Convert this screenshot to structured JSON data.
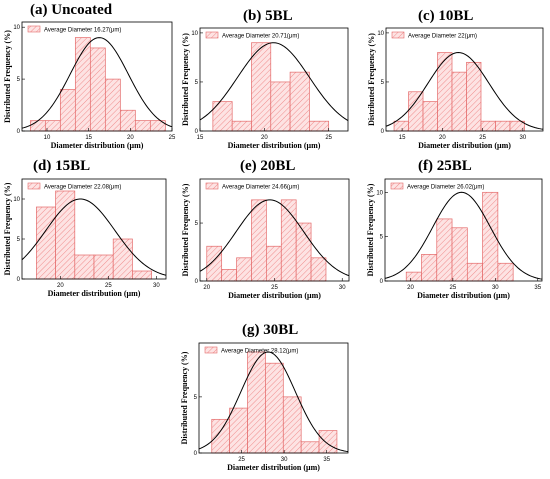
{
  "colors": {
    "bar_fill": "#fde3e3",
    "bar_stroke": "#e46a6a",
    "hatch": "#f08c8c",
    "curve": "#000000",
    "axis": "#000000"
  },
  "chart_data": [
    {
      "type": "bar",
      "title": "(a) Uncoated",
      "xlabel": "Diameter distribution (μm)",
      "ylabel": "Distributed Frequency (%)",
      "legend": "Average Diameter 16.27(μm)",
      "legend_position": "top-left",
      "bin_edges": [
        8,
        9.8,
        11.6,
        13.4,
        15.2,
        17,
        18.8,
        20.6,
        22.4,
        24.2
      ],
      "values": [
        1,
        1,
        4,
        9,
        8,
        5,
        2,
        1,
        1
      ],
      "xlim": [
        7,
        25
      ],
      "ylim": [
        0,
        10.5
      ],
      "x_ticks": [
        10,
        15,
        20,
        25
      ],
      "y_ticks": [
        0,
        5,
        10
      ],
      "fit": {
        "mean": 16.27,
        "peak": 9,
        "sigma": 3.5
      }
    },
    {
      "type": "bar",
      "title": "(b) 5BL",
      "xlabel": "Diameter distribution (μm)",
      "ylabel": "Distributed Frequency (%)",
      "legend": "Average Diameter 20.71(μm)",
      "legend_position": "top-left",
      "bin_edges": [
        16,
        17.5,
        19,
        20.5,
        22,
        23.5,
        25
      ],
      "values": [
        3,
        1,
        9,
        5,
        6,
        1
      ],
      "xlim": [
        15,
        26.5
      ],
      "ylim": [
        0,
        10.5
      ],
      "x_ticks": [
        15,
        20,
        25
      ],
      "y_ticks": [
        0,
        5,
        10
      ],
      "fit": {
        "mean": 20.71,
        "peak": 9,
        "sigma": 2.8
      }
    },
    {
      "type": "bar",
      "title": "(c) 10BL",
      "xlabel": "Diameter distribution (μm)",
      "ylabel": "Distributed Frequency (%)",
      "legend": "Average Diameter 22(μm)",
      "legend_position": "top-left",
      "bin_edges": [
        14,
        15.8,
        17.6,
        19.4,
        21.2,
        23,
        24.8,
        26.6,
        28.4,
        30.2
      ],
      "values": [
        1,
        4,
        3,
        8,
        6,
        7,
        1,
        1,
        1
      ],
      "xlim": [
        13,
        32.5
      ],
      "ylim": [
        0,
        10.5
      ],
      "x_ticks": [
        15,
        20,
        25,
        30
      ],
      "y_ticks": [
        0,
        5,
        10
      ],
      "fit": {
        "mean": 22,
        "peak": 8,
        "sigma": 3.8
      }
    },
    {
      "type": "bar",
      "title": "(d) 15BL",
      "xlabel": "Diameter distribution (μm)",
      "ylabel": "Distributed Frequency (%)",
      "legend": "Average Diameter 22.08(μm)",
      "legend_position": "top-left",
      "bin_edges": [
        17.5,
        19.5,
        21.5,
        23.5,
        25.5,
        27.5,
        29.5
      ],
      "values": [
        9,
        11,
        3,
        3,
        5,
        1
      ],
      "xlim": [
        16,
        31
      ],
      "ylim": [
        0,
        12.5
      ],
      "x_ticks": [
        20,
        25,
        30
      ],
      "y_ticks": [
        0,
        5,
        10
      ],
      "fit": {
        "mean": 22.08,
        "peak": 10,
        "sigma": 3.6
      }
    },
    {
      "type": "bar",
      "title": "(e) 20BL",
      "xlabel": "Diameter distribution (μm)",
      "ylabel": "Distributed Frequency (%)",
      "legend": "Average Diameter 24.66(μm)",
      "legend_position": "top-left",
      "bin_edges": [
        20,
        21.1,
        22.2,
        23.3,
        24.4,
        25.5,
        26.6,
        27.7,
        28.8
      ],
      "values": [
        3,
        1,
        2,
        7,
        3,
        7,
        5,
        2
      ],
      "xlim": [
        19.5,
        30.5
      ],
      "ylim": [
        0,
        8.8
      ],
      "x_ticks": [
        20,
        25,
        30
      ],
      "y_ticks": [
        0,
        5
      ],
      "fit": {
        "mean": 24.66,
        "peak": 7,
        "sigma": 2.5
      }
    },
    {
      "type": "bar",
      "title": "(f) 25BL",
      "xlabel": "Diameter distribution (μm)",
      "ylabel": "Distributed Frequency (%)",
      "legend": "Average Diameter 26.02(μm)",
      "legend_position": "top-left",
      "bin_edges": [
        19.5,
        21.3,
        23.1,
        24.9,
        26.7,
        28.5,
        30.3,
        32.1
      ],
      "values": [
        1,
        3,
        7,
        6,
        2,
        10,
        2
      ],
      "xlim": [
        17,
        35.5
      ],
      "ylim": [
        0,
        11.5
      ],
      "x_ticks": [
        20,
        25,
        30,
        35
      ],
      "y_ticks": [
        0,
        5,
        10
      ],
      "fit": {
        "mean": 26.02,
        "peak": 10,
        "sigma": 3.4
      }
    },
    {
      "type": "bar",
      "title": "(g) 30BL",
      "xlabel": "Diameter distribution (μm)",
      "ylabel": "Distributed Frequency (%)",
      "legend": "Average Diameter 28.12(μm)",
      "legend_position": "top-left",
      "bin_edges": [
        21.5,
        23.6,
        25.7,
        27.8,
        29.9,
        32,
        34.1,
        36.2
      ],
      "values": [
        3,
        4,
        9,
        8,
        5,
        1,
        2
      ],
      "xlim": [
        20,
        37.5
      ],
      "ylim": [
        0,
        9.8
      ],
      "x_ticks": [
        25,
        30,
        35
      ],
      "y_ticks": [
        0,
        5
      ],
      "fit": {
        "mean": 28.12,
        "peak": 9,
        "sigma": 3.2
      }
    }
  ]
}
